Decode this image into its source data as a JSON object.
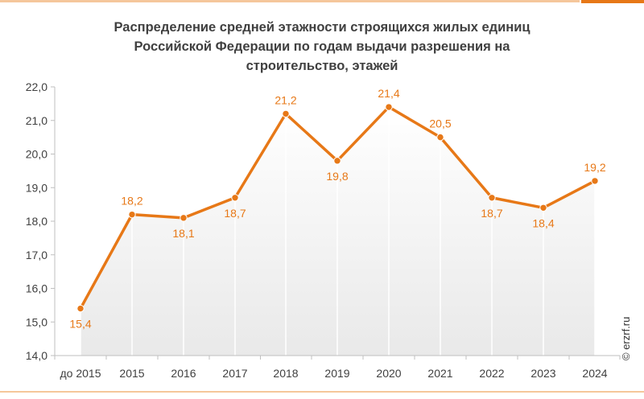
{
  "title_lines": [
    "Распределение средней этажности строящихся жилых единиц",
    "Российской Федерации по годам выдачи разрешения на",
    "строительство, этажей"
  ],
  "credit": "© erzrf.ru",
  "colors": {
    "line": "#e77817",
    "accent": "#e77817",
    "area_top": "#ffffff",
    "area_bottom": "#e9e9e9",
    "axis": "#bfbfbf"
  },
  "chart_data": {
    "type": "line",
    "title": "Распределение средней этажности строящихся жилых единиц Российской Федерации по годам выдачи разрешения на строительство, этажей",
    "categories": [
      "до 2015",
      "2015",
      "2016",
      "2017",
      "2018",
      "2019",
      "2020",
      "2021",
      "2022",
      "2023",
      "2024"
    ],
    "series": [
      {
        "values": [
          15.4,
          18.2,
          18.1,
          18.7,
          21.2,
          19.8,
          21.4,
          20.5,
          18.7,
          18.4,
          19.2
        ]
      }
    ],
    "data_labels": [
      "15,4",
      "18,2",
      "18,1",
      "18,7",
      "21,2",
      "19,8",
      "21,4",
      "20,5",
      "18,7",
      "18,4",
      "19,2"
    ],
    "label_position": [
      "below",
      "above",
      "below",
      "below",
      "above",
      "below",
      "above",
      "above",
      "below",
      "below",
      "above"
    ],
    "ylim": [
      14.0,
      22.0
    ],
    "yticks": [
      14.0,
      15.0,
      16.0,
      17.0,
      18.0,
      19.0,
      20.0,
      21.0,
      22.0
    ],
    "ytick_labels": [
      "14,0",
      "15,0",
      "16,0",
      "17,0",
      "18,0",
      "19,0",
      "20,0",
      "21,0",
      "22,0"
    ],
    "grid": false,
    "drop_lines": true,
    "xlabel": "",
    "ylabel": ""
  }
}
